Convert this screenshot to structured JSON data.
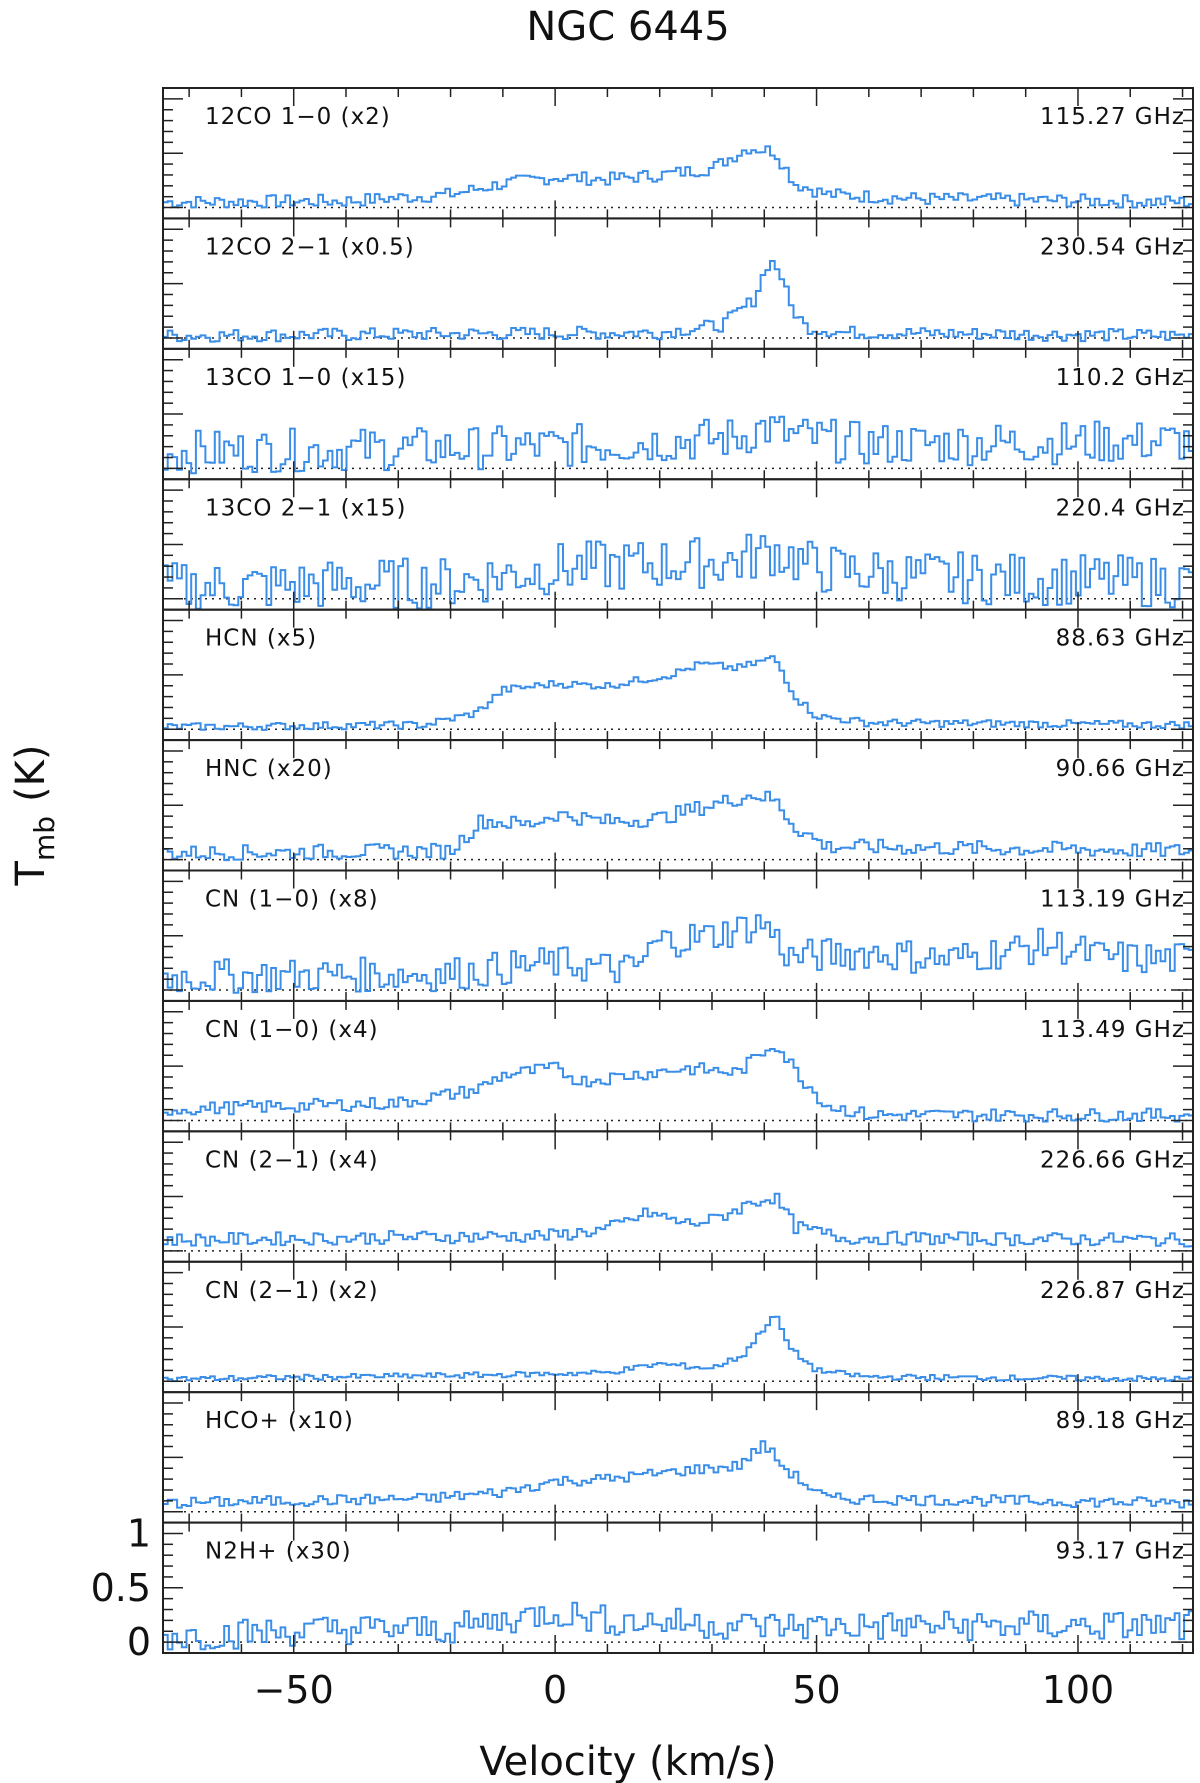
{
  "chart_data": {
    "type": "line",
    "title": "NGC 6445",
    "xlabel": "Velocity (km/s)",
    "ylabel_main": "T",
    "ylabel_sub": "mb",
    "ylabel_unit": "(K)",
    "xlim": [
      -75,
      122
    ],
    "x_ticks": [
      -50,
      0,
      50,
      100
    ],
    "x_tick_labels": [
      "−50",
      "0",
      "50",
      "100"
    ],
    "y_ticks": [
      0,
      0.5,
      1
    ],
    "y_tick_labels": [
      "0",
      "0.5",
      "1"
    ],
    "panel_ylim": [
      -0.1,
      1.1
    ],
    "grid": false,
    "line_color": "#3a8ee8",
    "baseline": "dotted",
    "series": [
      {
        "label": "12CO 1−0   (x2)",
        "frequency": "115.27 GHz",
        "noise": 0.06,
        "profile": [
          [
            -75,
            0.05
          ],
          [
            -40,
            0.06
          ],
          [
            -20,
            0.12
          ],
          [
            -10,
            0.22
          ],
          [
            0,
            0.28
          ],
          [
            10,
            0.26
          ],
          [
            20,
            0.3
          ],
          [
            30,
            0.36
          ],
          [
            37,
            0.55
          ],
          [
            42,
            0.52
          ],
          [
            46,
            0.22
          ],
          [
            52,
            0.12
          ],
          [
            70,
            0.08
          ],
          [
            122,
            0.05
          ]
        ]
      },
      {
        "label": "12CO 2−1 (x0.5)",
        "frequency": "230.54 GHz",
        "noise": 0.06,
        "profile": [
          [
            -75,
            0.02
          ],
          [
            20,
            0.05
          ],
          [
            32,
            0.12
          ],
          [
            38,
            0.35
          ],
          [
            41,
            0.72
          ],
          [
            43,
            0.62
          ],
          [
            45,
            0.3
          ],
          [
            48,
            0.1
          ],
          [
            55,
            0.05
          ],
          [
            122,
            0.02
          ]
        ]
      },
      {
        "label": "13CO 1−0 (x15)",
        "frequency": "110.2 GHz",
        "noise": 0.2,
        "profile": [
          [
            -75,
            0.15
          ],
          [
            0,
            0.2
          ],
          [
            35,
            0.28
          ],
          [
            40,
            0.38
          ],
          [
            45,
            0.3
          ],
          [
            60,
            0.22
          ],
          [
            122,
            0.25
          ]
        ]
      },
      {
        "label": "13CO 2−1 (x15)",
        "frequency": "220.4 GHz",
        "noise": 0.24,
        "profile": [
          [
            -75,
            0.1
          ],
          [
            -20,
            0.15
          ],
          [
            0,
            0.28
          ],
          [
            20,
            0.32
          ],
          [
            35,
            0.35
          ],
          [
            42,
            0.45
          ],
          [
            50,
            0.28
          ],
          [
            70,
            0.2
          ],
          [
            122,
            0.15
          ]
        ]
      },
      {
        "label": "HCN   (x5)",
        "frequency": "88.63 GHz",
        "noise": 0.035,
        "profile": [
          [
            -75,
            0.02
          ],
          [
            -25,
            0.04
          ],
          [
            -15,
            0.15
          ],
          [
            -10,
            0.36
          ],
          [
            0,
            0.42
          ],
          [
            10,
            0.4
          ],
          [
            22,
            0.5
          ],
          [
            28,
            0.6
          ],
          [
            35,
            0.56
          ],
          [
            42,
            0.66
          ],
          [
            46,
            0.3
          ],
          [
            50,
            0.12
          ],
          [
            60,
            0.06
          ],
          [
            122,
            0.04
          ]
        ]
      },
      {
        "label": "HNC (x20)",
        "frequency": "90.66 GHz",
        "noise": 0.07,
        "profile": [
          [
            -75,
            0.06
          ],
          [
            -20,
            0.08
          ],
          [
            -14,
            0.36
          ],
          [
            -5,
            0.32
          ],
          [
            0,
            0.42
          ],
          [
            10,
            0.35
          ],
          [
            20,
            0.38
          ],
          [
            28,
            0.48
          ],
          [
            38,
            0.6
          ],
          [
            42,
            0.55
          ],
          [
            46,
            0.3
          ],
          [
            52,
            0.12
          ],
          [
            122,
            0.08
          ]
        ]
      },
      {
        "label": "CN (1−0)   (x8)",
        "frequency": "113.19 GHz",
        "noise": 0.16,
        "profile": [
          [
            -75,
            0.12
          ],
          [
            -20,
            0.15
          ],
          [
            0,
            0.25
          ],
          [
            15,
            0.18
          ],
          [
            20,
            0.45
          ],
          [
            30,
            0.5
          ],
          [
            40,
            0.62
          ],
          [
            45,
            0.3
          ],
          [
            60,
            0.35
          ],
          [
            75,
            0.28
          ],
          [
            95,
            0.42
          ],
          [
            105,
            0.3
          ],
          [
            122,
            0.28
          ]
        ]
      },
      {
        "label": "CN (1−0)   (x4)",
        "frequency": "113.49 GHz",
        "noise": 0.06,
        "profile": [
          [
            -75,
            0.1
          ],
          [
            -30,
            0.16
          ],
          [
            -15,
            0.28
          ],
          [
            -10,
            0.42
          ],
          [
            0,
            0.48
          ],
          [
            5,
            0.36
          ],
          [
            15,
            0.42
          ],
          [
            25,
            0.48
          ],
          [
            35,
            0.44
          ],
          [
            42,
            0.72
          ],
          [
            47,
            0.4
          ],
          [
            52,
            0.14
          ],
          [
            60,
            0.05
          ],
          [
            122,
            0.05
          ]
        ]
      },
      {
        "label": "CN (2−1)   (x4)",
        "frequency": "226.66 GHz",
        "noise": 0.06,
        "profile": [
          [
            -75,
            0.1
          ],
          [
            0,
            0.14
          ],
          [
            10,
            0.2
          ],
          [
            18,
            0.35
          ],
          [
            25,
            0.25
          ],
          [
            30,
            0.28
          ],
          [
            38,
            0.45
          ],
          [
            42,
            0.5
          ],
          [
            46,
            0.22
          ],
          [
            55,
            0.12
          ],
          [
            122,
            0.1
          ]
        ]
      },
      {
        "label": "CN (2−1)   (x2)",
        "frequency": "226.87 GHz",
        "noise": 0.025,
        "profile": [
          [
            -75,
            0.02
          ],
          [
            -10,
            0.06
          ],
          [
            10,
            0.08
          ],
          [
            20,
            0.16
          ],
          [
            30,
            0.12
          ],
          [
            36,
            0.24
          ],
          [
            42,
            0.62
          ],
          [
            45,
            0.3
          ],
          [
            50,
            0.1
          ],
          [
            60,
            0.04
          ],
          [
            122,
            0.02
          ]
        ]
      },
      {
        "label": "HCO+ (x10)",
        "frequency": "89.18 GHz",
        "noise": 0.05,
        "profile": [
          [
            -75,
            0.08
          ],
          [
            -25,
            0.12
          ],
          [
            -10,
            0.18
          ],
          [
            0,
            0.28
          ],
          [
            10,
            0.3
          ],
          [
            25,
            0.38
          ],
          [
            35,
            0.42
          ],
          [
            40,
            0.62
          ],
          [
            44,
            0.4
          ],
          [
            48,
            0.25
          ],
          [
            52,
            0.12
          ],
          [
            122,
            0.08
          ]
        ]
      },
      {
        "label": "N2H+ (x30)",
        "frequency": "93.17 GHz",
        "noise": 0.14,
        "profile": [
          [
            -75,
            0.05
          ],
          [
            -40,
            0.12
          ],
          [
            -20,
            0.12
          ],
          [
            0,
            0.28
          ],
          [
            10,
            0.2
          ],
          [
            40,
            0.15
          ],
          [
            122,
            0.15
          ]
        ]
      }
    ]
  }
}
